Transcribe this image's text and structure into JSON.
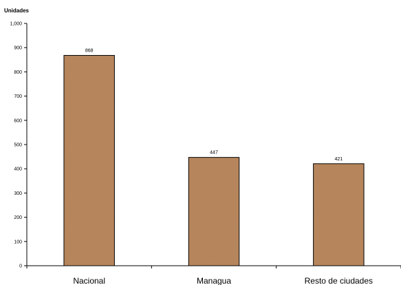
{
  "chart_data": {
    "type": "bar",
    "ylabel": "Unidades",
    "xlabel": "",
    "categories": [
      "Nacional",
      "Managua",
      "Resto de ciudades"
    ],
    "values": [
      868,
      447,
      421
    ],
    "data_labels": [
      "868",
      "447",
      "421"
    ],
    "ylim": [
      0,
      1000
    ],
    "yticks": [
      0,
      100,
      200,
      300,
      400,
      500,
      600,
      700,
      800,
      900,
      1000
    ],
    "ytick_labels": [
      "0",
      "100",
      "200",
      "300",
      "400",
      "500",
      "600",
      "700",
      "800",
      "900",
      "1,000"
    ],
    "grid": false,
    "legend": "none",
    "bar_color": "#b8845a",
    "bar_pattern_dark": "#6e4020",
    "bar_border": "#000000"
  }
}
